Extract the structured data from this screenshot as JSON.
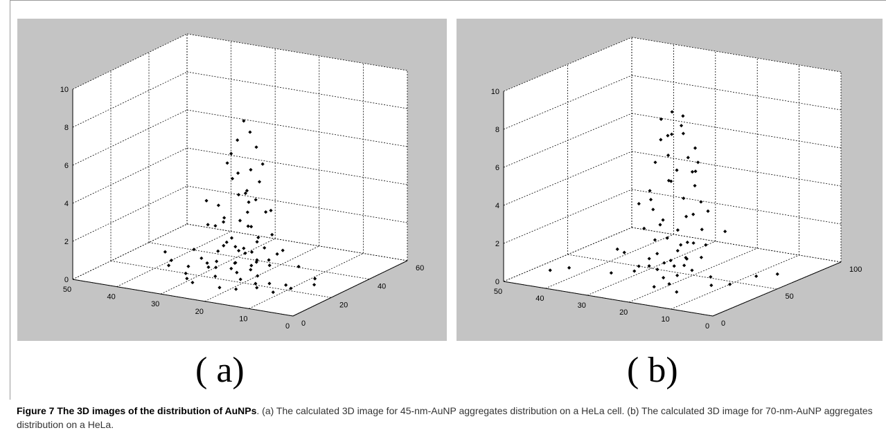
{
  "figure": {
    "label_a": "( a)",
    "label_b": "( b)",
    "caption_bold": "Figure 7 The 3D images of the distribution of AuNPs",
    "caption_rest": ". (a) The calculated 3D image for 45-nm-AuNP aggregates distribution on a HeLa cell. (b) The calculated 3D image for 70-nm-AuNP aggregates distribution on a HeLa."
  },
  "chart_data": [
    {
      "type": "scatter",
      "view": "3d",
      "title": "",
      "grid": true,
      "colors": {
        "background": "#c4c4c4",
        "plot": "#ffffff",
        "marker": "#000000"
      },
      "axes": {
        "x": {
          "ticks": [
            0,
            10,
            20,
            30,
            40,
            50
          ],
          "range": [
            0,
            50
          ]
        },
        "y": {
          "ticks": [
            0,
            20,
            40,
            60
          ],
          "range": [
            0,
            60
          ]
        },
        "z": {
          "ticks": [
            0,
            2,
            4,
            6,
            8,
            10
          ],
          "range": [
            0,
            10
          ]
        }
      },
      "points_xyz": [
        [
          22,
          25,
          8.2
        ],
        [
          21,
          26,
          7.6
        ],
        [
          23,
          24,
          7.2
        ],
        [
          20,
          27,
          6.8
        ],
        [
          24,
          23,
          6.5
        ],
        [
          19,
          28,
          5.9
        ],
        [
          22,
          22,
          5.6
        ],
        [
          18,
          24,
          5.2
        ],
        [
          25,
          26,
          5.0
        ],
        [
          21,
          20,
          4.6
        ],
        [
          23,
          29,
          4.3
        ],
        [
          20,
          23,
          4.1
        ],
        [
          26,
          21,
          3.8
        ],
        [
          17,
          25,
          3.6
        ],
        [
          22,
          27,
          3.3
        ],
        [
          24,
          19,
          3.1
        ],
        [
          19,
          22,
          2.9
        ],
        [
          21,
          25,
          2.7
        ],
        [
          28,
          24,
          2.5
        ],
        [
          16,
          26,
          2.4
        ],
        [
          23,
          21,
          2.2
        ],
        [
          20,
          28,
          2.0
        ],
        [
          25,
          23,
          1.8
        ],
        [
          18,
          20,
          1.7
        ],
        [
          22,
          25,
          1.5
        ],
        [
          27,
          26,
          1.4
        ],
        [
          15,
          22,
          1.3
        ],
        [
          24,
          27,
          1.2
        ],
        [
          21,
          18,
          1.1
        ],
        [
          19,
          25,
          1.0
        ],
        [
          26,
          20,
          0.9
        ],
        [
          23,
          23,
          0.8
        ],
        [
          17,
          27,
          0.7
        ],
        [
          29,
          22,
          0.6
        ],
        [
          20,
          24,
          0.5
        ],
        [
          22,
          29,
          0.4
        ],
        [
          25,
          17,
          0.3
        ],
        [
          18,
          23,
          0.3
        ],
        [
          14,
          20,
          0.2
        ],
        [
          30,
          25,
          0.2
        ],
        [
          21,
          21,
          0.1
        ],
        [
          24,
          26,
          0.1
        ],
        [
          12,
          24,
          0.0
        ],
        [
          33,
          20,
          0.0
        ],
        [
          16,
          18,
          0.0
        ],
        [
          27,
          30,
          0.0
        ],
        [
          19,
          14,
          0.0
        ],
        [
          35,
          26,
          0.0
        ],
        [
          10,
          22,
          0.0
        ],
        [
          31,
          16,
          0.0
        ],
        [
          23,
          34,
          0.3
        ],
        [
          8,
          30,
          0.2
        ],
        [
          28,
          12,
          0.1
        ],
        [
          36,
          18,
          0.4
        ],
        [
          13,
          33,
          0.5
        ],
        [
          21,
          10,
          0.2
        ],
        [
          26,
          35,
          0.6
        ],
        [
          38,
          24,
          0.3
        ],
        [
          11,
          15,
          0.1
        ],
        [
          30,
          30,
          0.8
        ],
        [
          17,
          31,
          1.1
        ],
        [
          24,
          15,
          0.9
        ],
        [
          32,
          22,
          1.2
        ],
        [
          15,
          15,
          0.4
        ],
        [
          22,
          32,
          1.5
        ],
        [
          29,
          19,
          1.0
        ],
        [
          42,
          30,
          0.3
        ],
        [
          6,
          25,
          0.2
        ],
        [
          20,
          16,
          2.1
        ],
        [
          25,
          30,
          2.6
        ],
        [
          18,
          30,
          3.4
        ],
        [
          27,
          17,
          4.2
        ],
        [
          23,
          31,
          5.3
        ],
        [
          16,
          22,
          1.9
        ],
        [
          31,
          27,
          2.3
        ],
        [
          14,
          27,
          1.6
        ],
        [
          26,
          24,
          3.0
        ],
        [
          21,
          29,
          3.9
        ],
        [
          19,
          19,
          4.8
        ],
        [
          24,
          21,
          6.1
        ]
      ]
    },
    {
      "type": "scatter",
      "view": "3d",
      "title": "",
      "grid": true,
      "colors": {
        "background": "#c4c4c4",
        "plot": "#ffffff",
        "marker": "#000000"
      },
      "axes": {
        "x": {
          "ticks": [
            0,
            10,
            20,
            30,
            40,
            50
          ],
          "range": [
            0,
            50
          ]
        },
        "y": {
          "ticks": [
            0,
            50,
            100
          ],
          "range": [
            0,
            100
          ]
        },
        "z": {
          "ticks": [
            0,
            2,
            4,
            6,
            8,
            10
          ],
          "range": [
            0,
            10
          ]
        }
      },
      "points_xyz": [
        [
          22,
          40,
          8.8
        ],
        [
          20,
          42,
          8.6
        ],
        [
          24,
          38,
          8.4
        ],
        [
          21,
          44,
          8.0
        ],
        [
          19,
          39,
          7.8
        ],
        [
          23,
          43,
          7.5
        ],
        [
          25,
          41,
          7.2
        ],
        [
          18,
          45,
          6.9
        ],
        [
          22,
          37,
          6.6
        ],
        [
          20,
          46,
          6.3
        ],
        [
          26,
          40,
          6.0
        ],
        [
          17,
          42,
          5.8
        ],
        [
          23,
          47,
          5.5
        ],
        [
          21,
          36,
          5.3
        ],
        [
          24,
          44,
          5.0
        ],
        [
          19,
          48,
          4.8
        ],
        [
          27,
          39,
          4.5
        ],
        [
          16,
          43,
          4.2
        ],
        [
          22,
          49,
          4.0
        ],
        [
          25,
          35,
          3.7
        ],
        [
          18,
          38,
          3.5
        ],
        [
          20,
          50,
          3.2
        ],
        [
          23,
          34,
          3.0
        ],
        [
          26,
          46,
          2.8
        ],
        [
          17,
          47,
          2.6
        ],
        [
          21,
          33,
          2.4
        ],
        [
          24,
          51,
          2.2
        ],
        [
          19,
          37,
          2.0
        ],
        [
          27,
          43,
          1.8
        ],
        [
          22,
          52,
          1.6
        ],
        [
          15,
          40,
          1.4
        ],
        [
          25,
          32,
          1.2
        ],
        [
          20,
          45,
          1.0
        ],
        [
          28,
          48,
          0.9
        ],
        [
          16,
          36,
          0.8
        ],
        [
          23,
          54,
          0.7
        ],
        [
          18,
          31,
          0.6
        ],
        [
          26,
          52,
          0.5
        ],
        [
          21,
          30,
          0.4
        ],
        [
          29,
          45,
          0.3
        ],
        [
          14,
          44,
          0.3
        ],
        [
          24,
          56,
          0.2
        ],
        [
          19,
          28,
          0.2
        ],
        [
          31,
          40,
          0.1
        ],
        [
          12,
          38,
          0.1
        ],
        [
          27,
          58,
          0.0
        ],
        [
          22,
          26,
          0.0
        ],
        [
          33,
          50,
          0.0
        ],
        [
          10,
          46,
          0.0
        ],
        [
          30,
          60,
          0.0
        ],
        [
          16,
          24,
          0.0
        ],
        [
          35,
          35,
          0.0
        ],
        [
          45,
          20,
          0.2
        ],
        [
          42,
          25,
          0.3
        ],
        [
          8,
          60,
          0.1
        ],
        [
          6,
          70,
          0.0
        ],
        [
          38,
          55,
          0.4
        ],
        [
          28,
          64,
          0.6
        ],
        [
          20,
          22,
          1.1
        ],
        [
          32,
          30,
          1.5
        ],
        [
          13,
          52,
          2.5
        ],
        [
          18,
          55,
          3.3
        ],
        [
          24,
          30,
          4.4
        ],
        [
          21,
          57,
          5.7
        ],
        [
          15,
          33,
          6.1
        ],
        [
          27,
          53,
          7.0
        ],
        [
          17,
          50,
          1.7
        ],
        [
          25,
          28,
          2.9
        ],
        [
          29,
          37,
          3.8
        ],
        [
          23,
          60,
          1.3
        ]
      ]
    }
  ]
}
